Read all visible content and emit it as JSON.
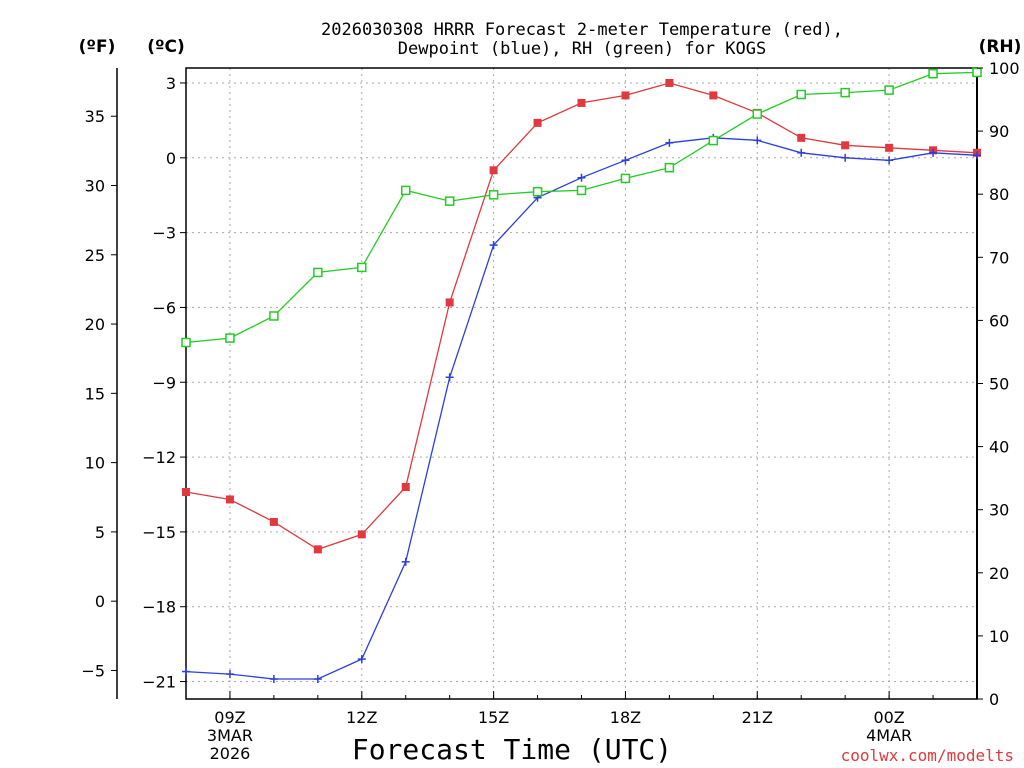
{
  "chart_data": {
    "type": "line",
    "title_line1": "2026030308 HRRR Forecast 2-meter Temperature (red),",
    "title_line2": "Dewpoint (blue), RH (green) for KOGS",
    "unit_left_outer": "(ºF)",
    "unit_left_inner": "(ºC)",
    "unit_right": "(RH)",
    "xlabel": "Forecast Time (UTC)",
    "credit": "coolwx.com/modelts",
    "hours": [
      8,
      9,
      10,
      11,
      12,
      13,
      14,
      15,
      16,
      17,
      18,
      19,
      20,
      21,
      22,
      23,
      24,
      25,
      26
    ],
    "x_range": [
      8,
      26
    ],
    "x_ticks": [
      {
        "hour": 9,
        "label": "09Z",
        "sub1": "3MAR",
        "sub2": "2026"
      },
      {
        "hour": 12,
        "label": "12Z",
        "sub1": "",
        "sub2": ""
      },
      {
        "hour": 15,
        "label": "15Z",
        "sub1": "",
        "sub2": ""
      },
      {
        "hour": 18,
        "label": "18Z",
        "sub1": "",
        "sub2": ""
      },
      {
        "hour": 21,
        "label": "21Z",
        "sub1": "",
        "sub2": ""
      },
      {
        "hour": 24,
        "label": "00Z",
        "sub1": "4MAR",
        "sub2": ""
      }
    ],
    "celsius_range": [
      -21.7,
      3.6
    ],
    "celsius_ticks": [
      {
        "value": 3,
        "label": "3"
      },
      {
        "value": 0,
        "label": "0"
      },
      {
        "value": -3,
        "label": "−3"
      },
      {
        "value": -6,
        "label": "−6"
      },
      {
        "value": -9,
        "label": "−9"
      },
      {
        "value": -12,
        "label": "−12"
      },
      {
        "value": -15,
        "label": "−15"
      },
      {
        "value": -18,
        "label": "−18"
      },
      {
        "value": -21,
        "label": "−21"
      }
    ],
    "fahrenheit_ticks": [
      {
        "value": 35,
        "label": "35"
      },
      {
        "value": 30,
        "label": "30"
      },
      {
        "value": 25,
        "label": "25"
      },
      {
        "value": 20,
        "label": "20"
      },
      {
        "value": 15,
        "label": "15"
      },
      {
        "value": 10,
        "label": "10"
      },
      {
        "value": 5,
        "label": "5"
      },
      {
        "value": 0,
        "label": "0"
      },
      {
        "value": -5,
        "label": "−5"
      }
    ],
    "rh_range": [
      0,
      100
    ],
    "rh_ticks": [
      {
        "value": 0,
        "label": "0"
      },
      {
        "value": 10,
        "label": "10"
      },
      {
        "value": 20,
        "label": "20"
      },
      {
        "value": 30,
        "label": "30"
      },
      {
        "value": 40,
        "label": "40"
      },
      {
        "value": 50,
        "label": "50"
      },
      {
        "value": 60,
        "label": "60"
      },
      {
        "value": 70,
        "label": "70"
      },
      {
        "value": 80,
        "label": "80"
      },
      {
        "value": 90,
        "label": "90"
      },
      {
        "value": 100,
        "label": "100"
      }
    ],
    "grid": true,
    "series": [
      {
        "name": "Temperature",
        "unit": "C",
        "color": "#e0393e",
        "marker": "filled-square",
        "values": [
          -13.4,
          -13.7,
          -14.6,
          -15.7,
          -15.1,
          -13.2,
          -5.8,
          -0.5,
          1.4,
          2.2,
          2.5,
          3.0,
          2.5,
          1.8,
          0.8,
          0.5,
          0.4,
          0.3,
          0.2
        ]
      },
      {
        "name": "Dewpoint",
        "unit": "C",
        "color": "#2b3fe0",
        "marker": "plus",
        "values": [
          -20.6,
          -20.7,
          -20.9,
          -20.9,
          -20.1,
          -16.2,
          -8.8,
          -3.5,
          -1.6,
          -0.8,
          -0.1,
          0.6,
          0.8,
          0.7,
          0.2,
          -0.0,
          -0.1,
          0.2,
          0.1
        ]
      },
      {
        "name": "RH",
        "unit": "%",
        "color": "#22cc22",
        "marker": "open-square",
        "values": [
          56.5,
          57.2,
          60.7,
          67.6,
          68.4,
          80.6,
          78.9,
          79.9,
          80.4,
          80.6,
          82.5,
          84.2,
          88.5,
          92.7,
          95.8,
          96.1,
          96.5,
          99.1,
          99.3
        ]
      }
    ]
  }
}
